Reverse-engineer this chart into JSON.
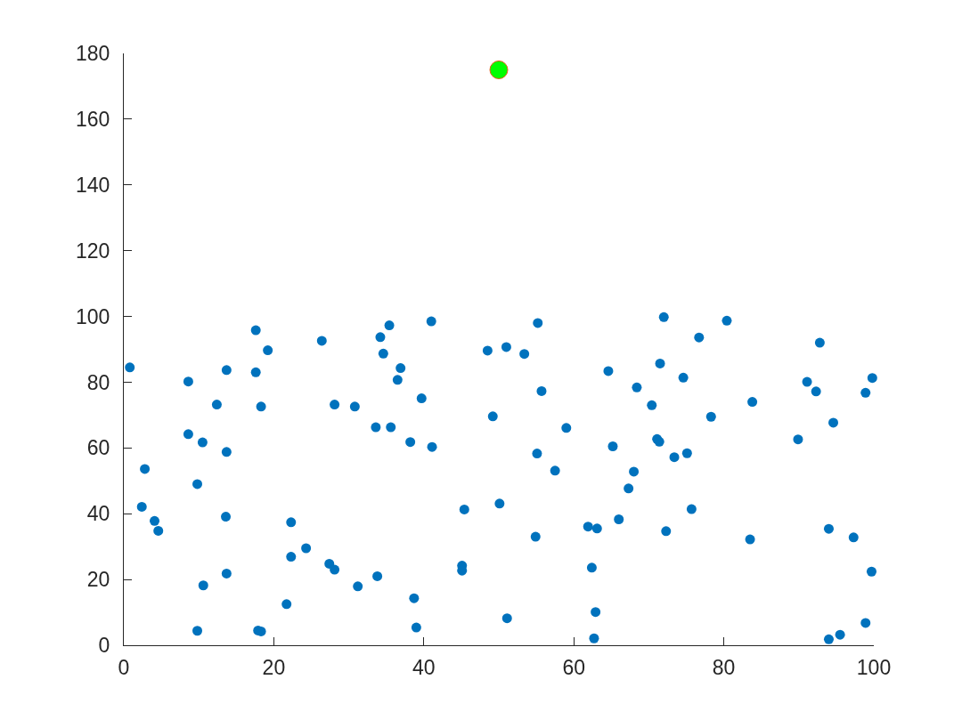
{
  "chart_data": {
    "type": "scatter",
    "marker": "circle",
    "grid": false,
    "xlim": [
      0,
      100
    ],
    "ylim": [
      0,
      180
    ],
    "xticks": [
      0,
      20,
      40,
      60,
      80,
      100
    ],
    "yticks": [
      0,
      20,
      40,
      60,
      80,
      100,
      120,
      140,
      160,
      180
    ],
    "series": [
      {
        "color": "#0072bd",
        "x": [
          0.8,
          17.6,
          19.2,
          26.4,
          13.7,
          17.6,
          8.6,
          12.4,
          18.3,
          28.1,
          30.8,
          33.6,
          8.6,
          10.5,
          13.7,
          2.8,
          9.8,
          2.4,
          4.1,
          4.6,
          13.6,
          22.3,
          24.3,
          22.3,
          27.4,
          28.1,
          13.7,
          10.6,
          31.2,
          21.7,
          9.8,
          17.9,
          18.3,
          33.8,
          35.6,
          35.4,
          34.2,
          34.6,
          41.0,
          36.9,
          36.5,
          39.7,
          38.2,
          41.1,
          48.5,
          51.0,
          53.4,
          55.2,
          55.7,
          49.2,
          55.1,
          57.5,
          59.0,
          64.6,
          65.2,
          45.4,
          50.1,
          54.9,
          61.9,
          63.1,
          66.0,
          45.1,
          45.1,
          38.7,
          39.0,
          51.1,
          62.4,
          62.9,
          62.7,
          72.0,
          80.4,
          76.7,
          71.5,
          74.6,
          68.4,
          70.4,
          83.8,
          78.3,
          71.1,
          71.4,
          73.4,
          75.1,
          68.0,
          67.3,
          75.7,
          72.3,
          83.5,
          92.8,
          91.1,
          92.3,
          99.8,
          98.9,
          94.6,
          89.9,
          94.0,
          97.3,
          99.7,
          98.9,
          95.5,
          94.0
        ],
        "values": [
          84.5,
          95.8,
          89.7,
          92.6,
          83.7,
          83.0,
          80.2,
          73.2,
          72.6,
          73.2,
          72.6,
          66.3,
          64.2,
          61.7,
          58.8,
          53.6,
          49.0,
          42.1,
          37.8,
          34.8,
          39.1,
          37.4,
          29.5,
          26.9,
          24.8,
          23.0,
          21.8,
          18.2,
          17.9,
          12.5,
          4.4,
          4.5,
          4.2,
          21.0,
          66.3,
          97.3,
          93.7,
          88.7,
          98.5,
          84.3,
          80.7,
          75.1,
          61.8,
          60.3,
          89.6,
          90.7,
          88.6,
          98.0,
          77.3,
          69.6,
          58.3,
          53.1,
          66.1,
          83.4,
          60.5,
          41.3,
          43.1,
          33.0,
          36.1,
          35.5,
          38.3,
          24.2,
          22.7,
          14.3,
          5.4,
          8.2,
          23.6,
          10.1,
          2.1,
          99.8,
          98.7,
          93.6,
          85.7,
          81.4,
          78.4,
          73.0,
          74.0,
          69.5,
          62.7,
          61.9,
          57.2,
          58.4,
          52.8,
          47.7,
          41.4,
          34.7,
          32.2,
          92.0,
          80.1,
          77.2,
          81.3,
          76.8,
          67.7,
          62.6,
          35.4,
          32.8,
          22.4,
          6.8,
          3.2,
          1.8
        ]
      },
      {
        "color": "#00ff00",
        "x": [
          50
        ],
        "values": [
          175
        ]
      }
    ]
  }
}
